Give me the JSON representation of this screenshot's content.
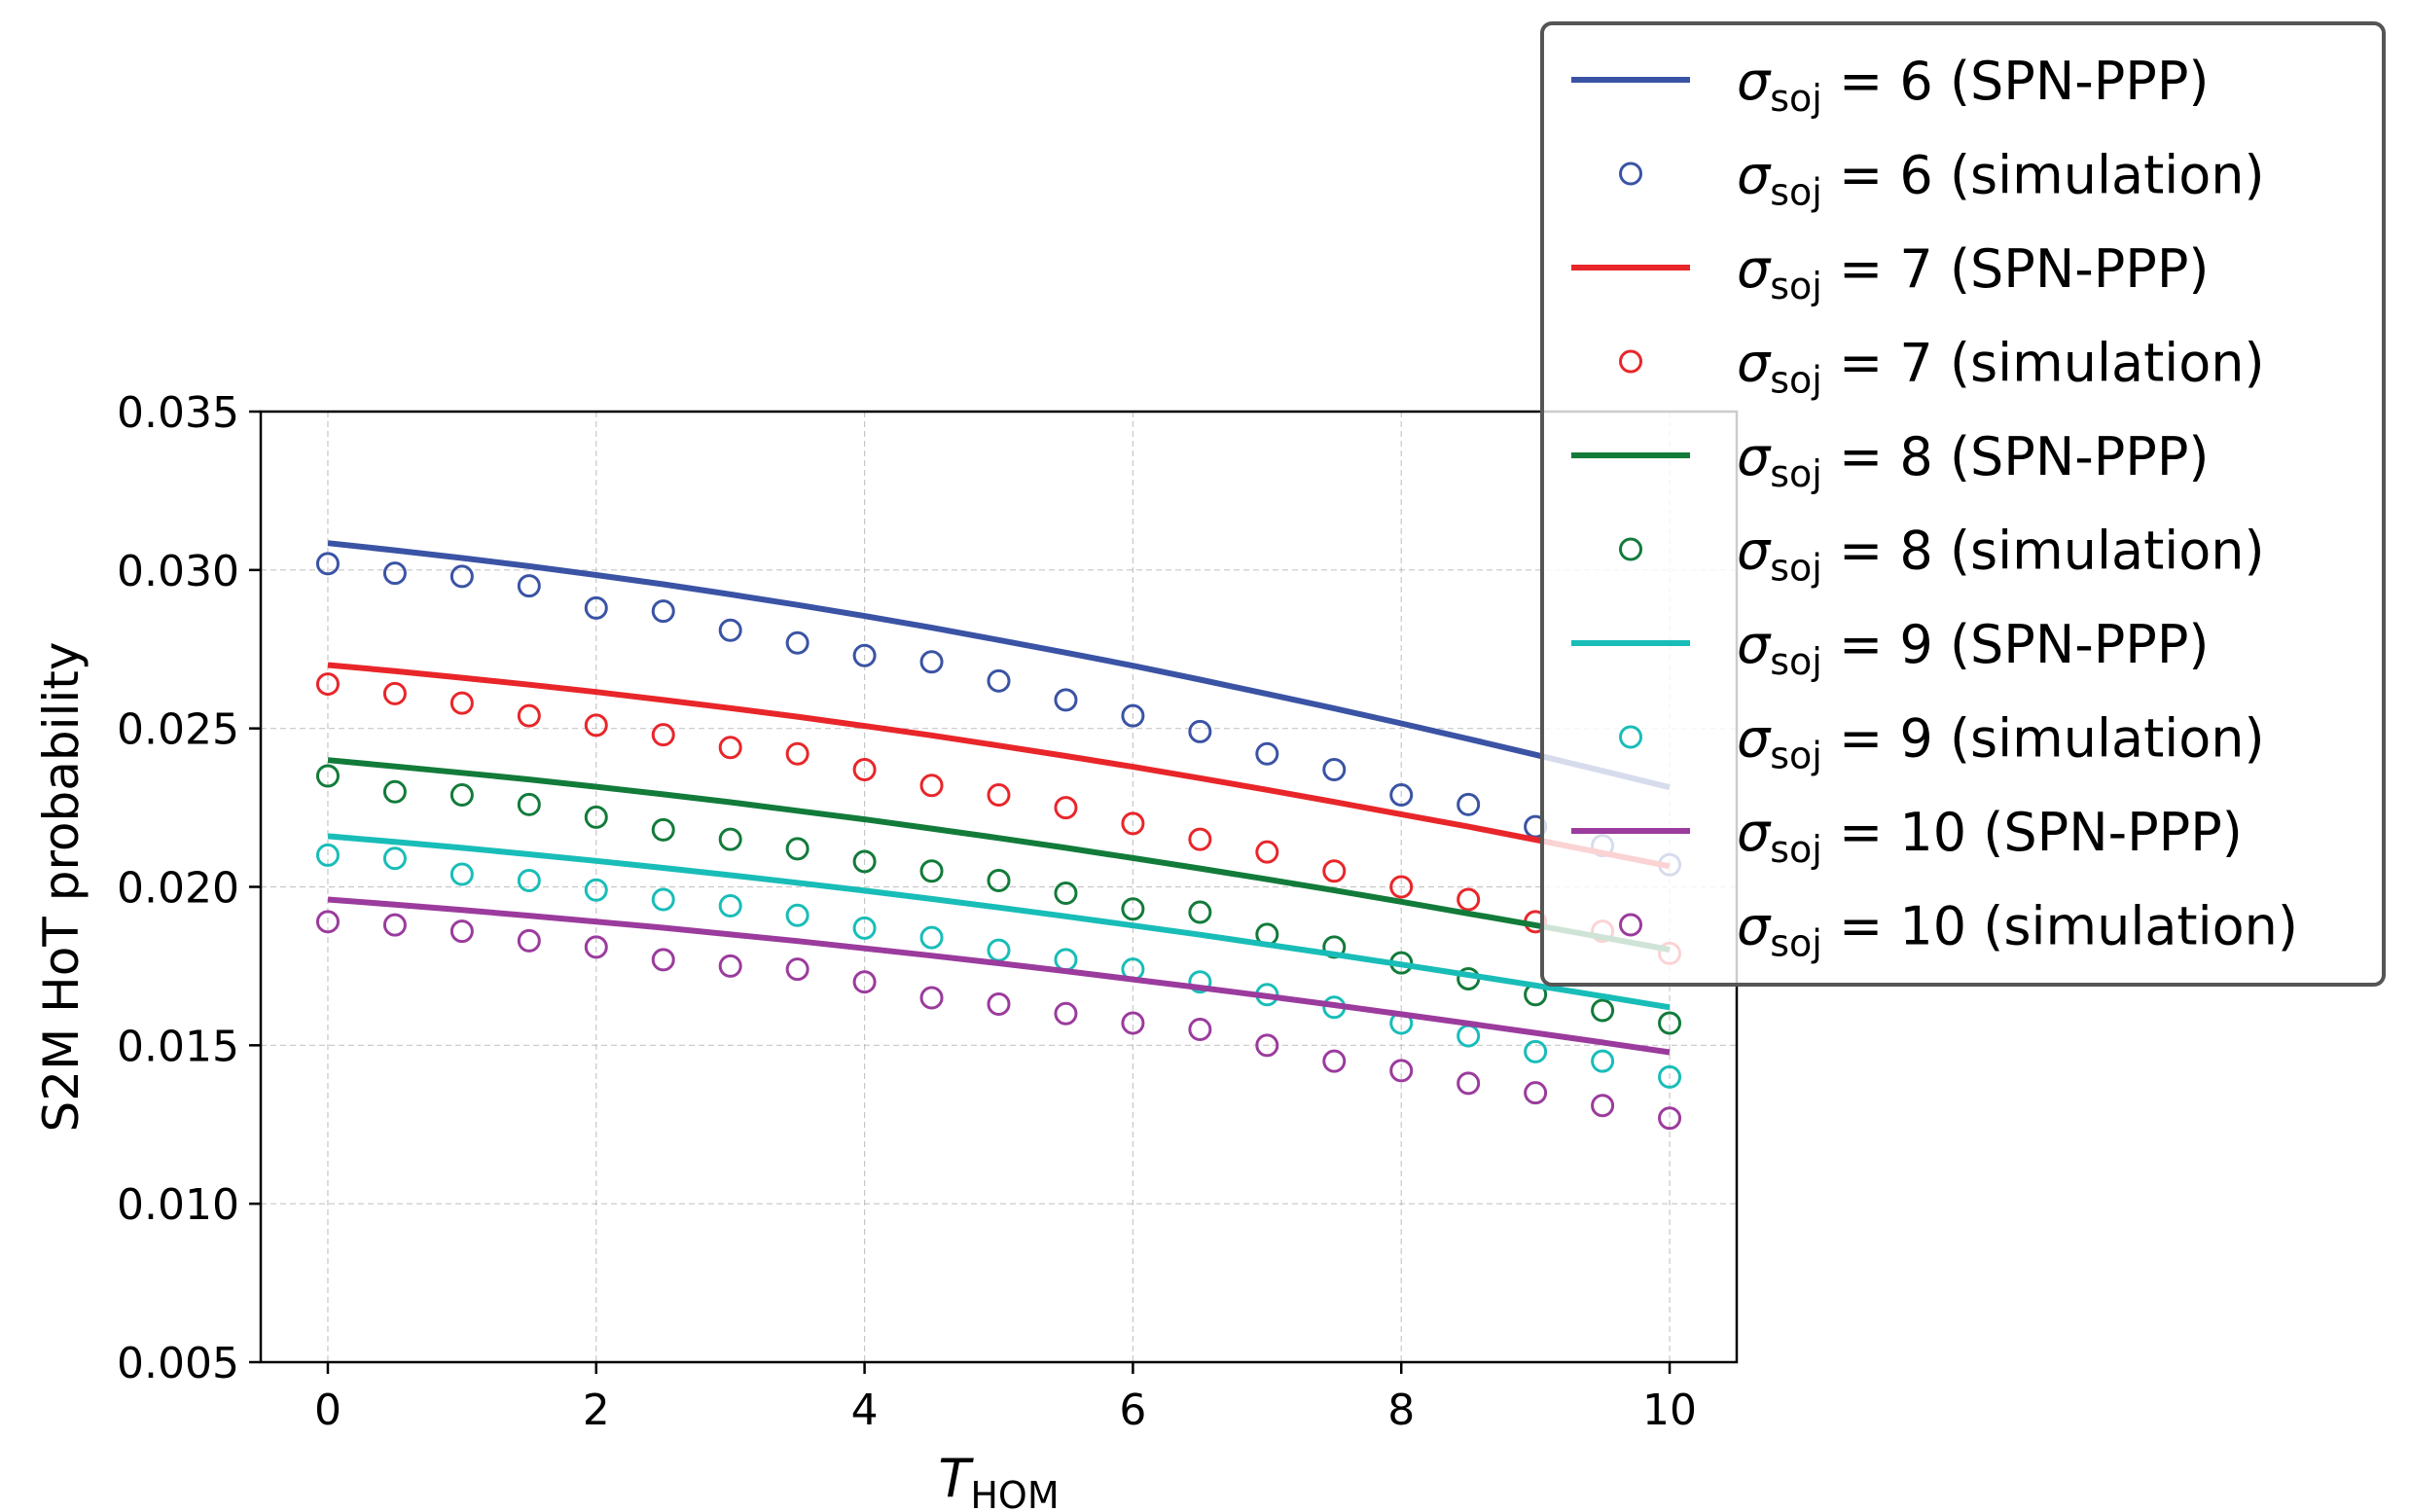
{
  "chart_data": {
    "type": "line",
    "title": "",
    "xlabel": "T",
    "xlabel_sub": "HOM",
    "ylabel": "S2M HoT probability",
    "xlim": [
      -0.5,
      10.5
    ],
    "ylim": [
      0.005,
      0.035
    ],
    "xticks": [
      0,
      2,
      4,
      6,
      8,
      10
    ],
    "xtick_labels": [
      "0",
      "2",
      "4",
      "6",
      "8",
      "10"
    ],
    "yticks": [
      0.005,
      0.01,
      0.015,
      0.02,
      0.025,
      0.03,
      0.035
    ],
    "ytick_labels": [
      "0.005",
      "0.010",
      "0.015",
      "0.020",
      "0.025",
      "0.030",
      "0.035"
    ],
    "grid": true,
    "legend_position": "upper-right (outside)",
    "x": [
      0,
      0.5,
      1,
      1.5,
      2,
      2.5,
      3,
      3.5,
      4,
      4.5,
      5,
      5.5,
      6,
      6.5,
      7,
      7.5,
      8,
      8.5,
      9,
      9.5,
      10
    ],
    "series": [
      {
        "name": "6",
        "color": "#3a53a4",
        "model_label": "(SPN-PPP)",
        "sim_label": "(simulation)",
        "model": [
          0.03085,
          0.03062,
          0.03038,
          0.03012,
          0.02984,
          0.02955,
          0.02923,
          0.0289,
          0.02855,
          0.02818,
          0.02779,
          0.02739,
          0.02698,
          0.02654,
          0.02609,
          0.02563,
          0.02516,
          0.02467,
          0.02417,
          0.02366,
          0.02314
        ],
        "simulation": [
          0.0302,
          0.0299,
          0.0298,
          0.0295,
          0.0288,
          0.0287,
          0.0281,
          0.0277,
          0.0273,
          0.0271,
          0.0265,
          0.0259,
          0.0254,
          0.0249,
          0.0242,
          0.0237,
          0.0229,
          0.0226,
          0.0219,
          0.0213,
          0.0207
        ]
      },
      {
        "name": "7",
        "color": "#e8262a",
        "model_label": "(SPN-PPP)",
        "sim_label": "(simulation)",
        "model": [
          0.027,
          0.02681,
          0.0266,
          0.02638,
          0.02615,
          0.0259,
          0.02564,
          0.02537,
          0.02508,
          0.02478,
          0.02446,
          0.02413,
          0.02379,
          0.02343,
          0.02306,
          0.02268,
          0.02229,
          0.0219,
          0.02149,
          0.02107,
          0.02065
        ],
        "simulation": [
          0.0264,
          0.0261,
          0.0258,
          0.0254,
          0.0251,
          0.0248,
          0.0244,
          0.0242,
          0.0237,
          0.0232,
          0.0229,
          0.0225,
          0.022,
          0.0215,
          0.0211,
          0.0205,
          0.02,
          0.0196,
          0.0189,
          0.0186,
          0.0179
        ]
      },
      {
        "name": "8",
        "color": "#127b3a",
        "model_label": "(SPN-PPP)",
        "sim_label": "(simulation)",
        "model": [
          0.024,
          0.0238,
          0.0236,
          0.02339,
          0.02316,
          0.02292,
          0.02267,
          0.0224,
          0.02213,
          0.02184,
          0.02154,
          0.02123,
          0.02091,
          0.02058,
          0.02024,
          0.01989,
          0.01953,
          0.01916,
          0.01879,
          0.01841,
          0.01802
        ],
        "simulation": [
          0.0235,
          0.023,
          0.0229,
          0.0226,
          0.0222,
          0.0218,
          0.0215,
          0.0212,
          0.0208,
          0.0205,
          0.0202,
          0.0198,
          0.0193,
          0.0192,
          0.0185,
          0.0181,
          0.0176,
          0.0171,
          0.0166,
          0.0161,
          0.0157
        ]
      },
      {
        "name": "9",
        "color": "#19bdb8",
        "model_label": "(SPN-PPP)",
        "sim_label": "(simulation)",
        "model": [
          0.0216,
          0.02142,
          0.02123,
          0.02103,
          0.02082,
          0.0206,
          0.02037,
          0.02013,
          0.01988,
          0.01962,
          0.01935,
          0.01907,
          0.01878,
          0.01849,
          0.01818,
          0.01787,
          0.01755,
          0.01722,
          0.01689,
          0.01655,
          0.0162
        ],
        "simulation": [
          0.021,
          0.0209,
          0.0204,
          0.0202,
          0.0199,
          0.0196,
          0.0194,
          0.0191,
          0.0187,
          0.0184,
          0.018,
          0.0177,
          0.0174,
          0.017,
          0.0166,
          0.0162,
          0.0157,
          0.0153,
          0.0148,
          0.0145,
          0.014
        ]
      },
      {
        "name": "10",
        "color": "#9b3b9d",
        "model_label": "(SPN-PPP)",
        "sim_label": "(simulation)",
        "model": [
          0.0196,
          0.01944,
          0.01927,
          0.01909,
          0.0189,
          0.01871,
          0.0185,
          0.01829,
          0.01806,
          0.01783,
          0.01759,
          0.01734,
          0.01708,
          0.01682,
          0.01655,
          0.01627,
          0.01598,
          0.01569,
          0.01539,
          0.01509,
          0.01478
        ],
        "simulation": [
          0.0189,
          0.0188,
          0.0186,
          0.0183,
          0.0181,
          0.0177,
          0.0175,
          0.0174,
          0.017,
          0.0165,
          0.0163,
          0.016,
          0.0157,
          0.0155,
          0.015,
          0.0145,
          0.0142,
          0.0138,
          0.0135,
          0.0131,
          0.0127
        ]
      }
    ],
    "legend_symbol": "σ",
    "legend_subscript": "soj"
  }
}
